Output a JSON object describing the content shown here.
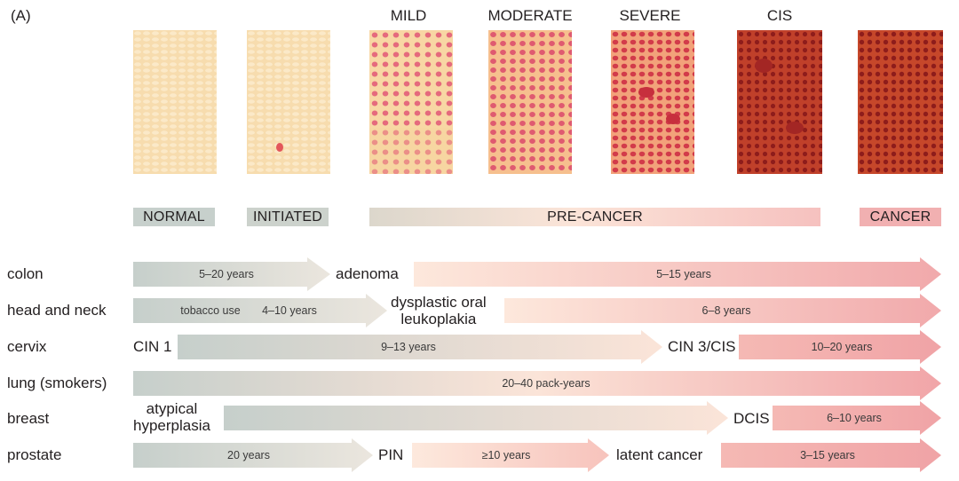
{
  "figure_label": "(A)",
  "panels": {
    "mild": "MILD",
    "moderate": "MODERATE",
    "severe": "SEVERE",
    "cis": "CIS"
  },
  "stages": {
    "normal": "NORMAL",
    "initiated": "INITIATED",
    "precancer": "PRE-CANCER",
    "cancer": "CANCER"
  },
  "rows": {
    "colon": {
      "organ": "colon",
      "seg1": "5–20 years",
      "milestone1": "adenoma",
      "seg2": "5–15 years"
    },
    "head_neck": {
      "organ": "head and neck",
      "seg1a": "tobacco use",
      "seg1b": "4–10 years",
      "milestone1_line1": "dysplastic oral",
      "milestone1_line2": "leukoplakia",
      "seg2": "6–8 years"
    },
    "cervix": {
      "organ": "cervix",
      "milestone0": "CIN 1",
      "seg1": "9–13 years",
      "milestone1": "CIN 3/CIS",
      "seg2": "10–20 years"
    },
    "lung": {
      "organ": "lung (smokers)",
      "seg1": "20–40 pack-years"
    },
    "breast": {
      "organ": "breast",
      "milestone0_line1": "atypical",
      "milestone0_line2": "hyperplasia",
      "milestone1": "DCIS",
      "seg2": "6–10 years"
    },
    "prostate": {
      "organ": "prostate",
      "seg1": "20 years",
      "milestone1": "PIN",
      "seg2": "≥10 years",
      "milestone2": "latent cancer",
      "seg3": "3–15 years"
    }
  },
  "colors": {
    "start_gray": "#c9d1cd",
    "mid_peach": "#fbe3d6",
    "end_pink": "#f0a8aa",
    "cancer_pink": "#f1b3b4",
    "normal_tile": "#f6d9a7",
    "cis_tile": "#b8361f"
  }
}
